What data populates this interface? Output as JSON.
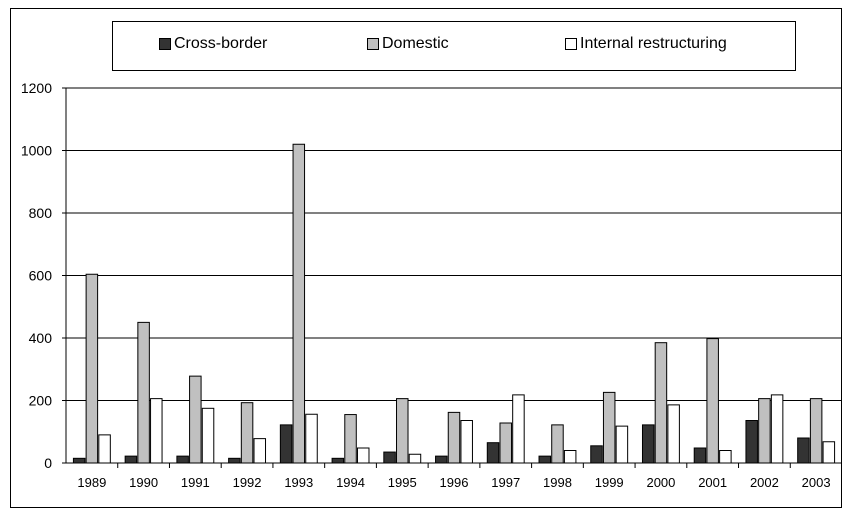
{
  "chart_data": {
    "type": "bar",
    "title": "",
    "xlabel": "",
    "ylabel": "",
    "ylim": [
      0,
      1200
    ],
    "yticks": [
      0,
      200,
      400,
      600,
      800,
      1000,
      1200
    ],
    "grid": true,
    "legend_position": "top",
    "categories": [
      "1989",
      "1990",
      "1991",
      "1992",
      "1993",
      "1994",
      "1995",
      "1996",
      "1997",
      "1998",
      "1999",
      "2000",
      "2001",
      "2002",
      "2003"
    ],
    "series": [
      {
        "name": "Cross-border",
        "color": "#333333",
        "values": [
          15,
          22,
          22,
          15,
          122,
          15,
          35,
          22,
          65,
          22,
          55,
          122,
          48,
          136,
          80
        ]
      },
      {
        "name": "Domestic",
        "color": "#c0c0c0",
        "values": [
          604,
          450,
          278,
          193,
          1020,
          155,
          206,
          162,
          128,
          122,
          226,
          385,
          398,
          206,
          206
        ]
      },
      {
        "name": "Internal restructuring",
        "color": "#ffffff",
        "values": [
          90,
          206,
          175,
          78,
          156,
          48,
          28,
          136,
          218,
          40,
          118,
          186,
          40,
          218,
          68
        ]
      }
    ]
  }
}
